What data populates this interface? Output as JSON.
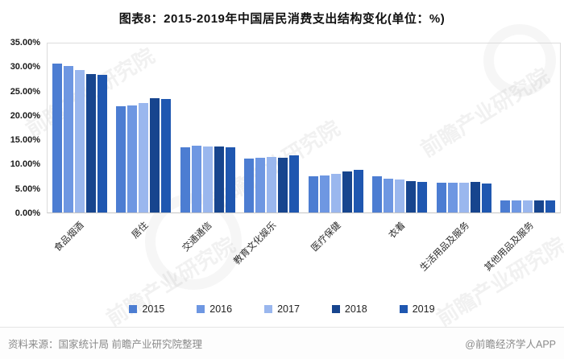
{
  "chart_data": {
    "type": "bar",
    "title": "图表8：2015-2019年中国居民消费支出结构变化(单位：%)",
    "categories": [
      "食品烟酒",
      "居住",
      "交通通信",
      "教育文化娱乐",
      "医疗保健",
      "衣着",
      "生活用品及服务",
      "其他用品及服务"
    ],
    "series": [
      {
        "name": "2015",
        "color": "#4c7dd2",
        "values": [
          30.6,
          21.8,
          13.3,
          11.0,
          7.4,
          7.4,
          6.1,
          2.5
        ]
      },
      {
        "name": "2016",
        "color": "#6e97e2",
        "values": [
          30.1,
          21.9,
          13.7,
          11.2,
          7.6,
          7.0,
          6.1,
          2.5
        ]
      },
      {
        "name": "2017",
        "color": "#9ab7ee",
        "values": [
          29.3,
          22.4,
          13.6,
          11.4,
          7.9,
          6.8,
          6.1,
          2.4
        ]
      },
      {
        "name": "2018",
        "color": "#17458e",
        "values": [
          28.4,
          23.4,
          13.5,
          11.2,
          8.5,
          6.5,
          6.2,
          2.4
        ]
      },
      {
        "name": "2019",
        "color": "#1f57b0",
        "values": [
          28.2,
          23.3,
          13.3,
          11.7,
          8.8,
          6.2,
          5.9,
          2.4
        ]
      }
    ],
    "ylim": [
      0,
      35
    ],
    "ytick_step": 5,
    "yticks": [
      "35.00%",
      "30.00%",
      "25.00%",
      "20.00%",
      "15.00%",
      "10.00%",
      "5.00%",
      "0.00%"
    ],
    "legend_position": "bottom",
    "grid": false
  },
  "footer": {
    "source": "资料来源：国家统计局 前瞻产业研究院整理",
    "credit": "@前瞻经济学人APP"
  },
  "watermark": {
    "text": "前瞻产业研究院"
  }
}
